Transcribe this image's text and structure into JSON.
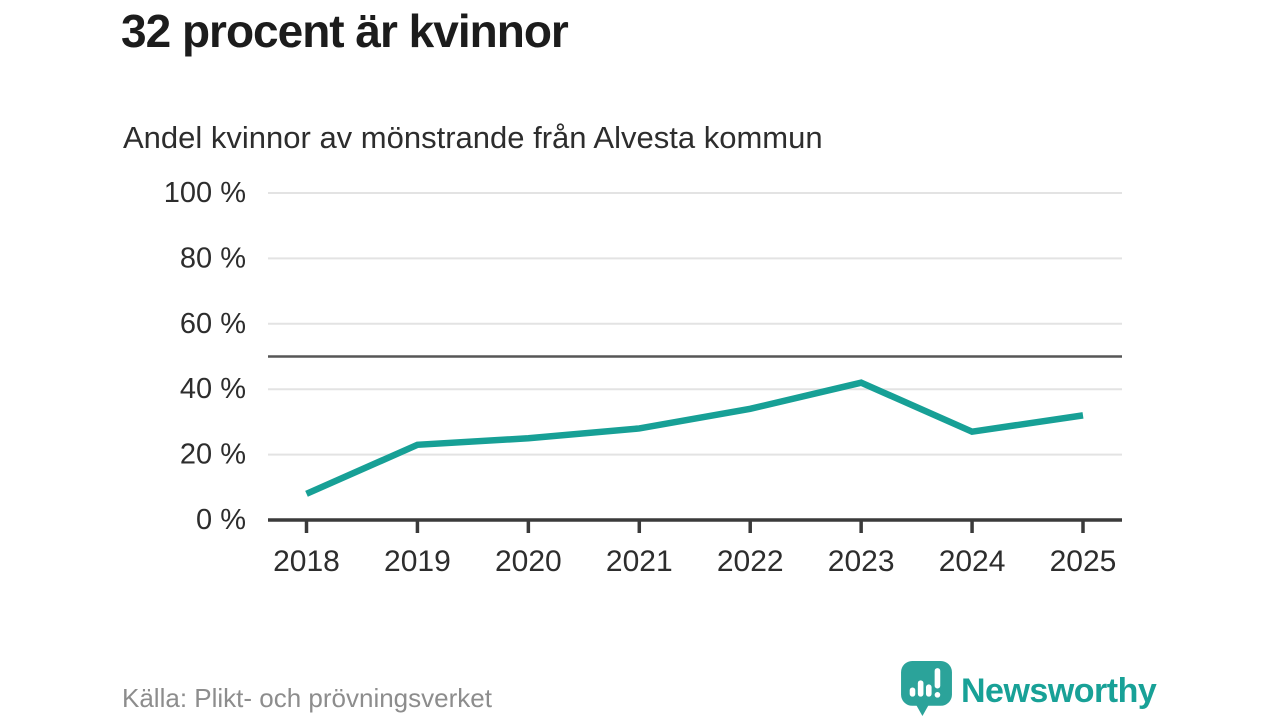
{
  "header": {
    "title": "32 procent är kvinnor",
    "subtitle": "Andel kvinnor av mönstrande från Alvesta kommun"
  },
  "chart_data": {
    "type": "line",
    "title": "Andel kvinnor av mönstrande från Alvesta kommun",
    "x": [
      2018,
      2019,
      2020,
      2021,
      2022,
      2023,
      2024,
      2025
    ],
    "x_tick_labels": [
      "2018",
      "2019",
      "2020",
      "2021",
      "2022",
      "2023",
      "2024",
      "2025"
    ],
    "series": [
      {
        "name": "Andel kvinnor av mönstrande",
        "values": [
          8,
          23,
          25,
          28,
          34,
          42,
          27,
          32
        ],
        "color": "#17a096"
      }
    ],
    "ylim": [
      0,
      100
    ],
    "yticks": [
      0,
      20,
      40,
      60,
      80,
      100
    ],
    "y_tick_labels": [
      "0 %",
      "20 %",
      "40 %",
      "60 %",
      "80 %",
      "100 %"
    ],
    "reference_line": 50,
    "grid": true,
    "legend": "none"
  },
  "footer": {
    "source": "Källa: Plikt- och prövningsverket",
    "brand": "Newsworthy"
  },
  "colors": {
    "accent": "#17a096",
    "brand_teal": "#18a197",
    "logo_icon": "#2ba39a",
    "grid": "#e3e3e3",
    "reference_line": "#565656",
    "axis": "#3a3a3a",
    "tick_text": "#2d2d2d",
    "title_text": "#1c1c1c",
    "muted_text": "#8d8d8d"
  }
}
